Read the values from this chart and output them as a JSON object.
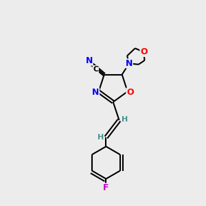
{
  "background_color": "#ececec",
  "bond_color": "#000000",
  "atom_colors": {
    "N": "#0000ff",
    "O": "#ff0000",
    "F": "#cc00cc",
    "C": "#000000",
    "H": "#4a9090"
  },
  "font_size_atom": 9,
  "figure_width": 3.0,
  "figure_height": 3.0,
  "dpi": 100
}
